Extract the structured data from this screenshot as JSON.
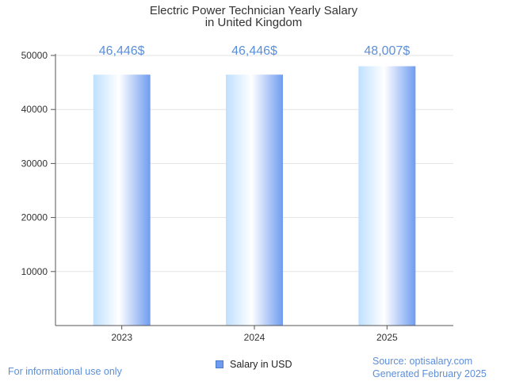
{
  "chart_data": {
    "type": "bar",
    "title": [
      "Electric Power Technician Yearly Salary",
      "in United Kingdom"
    ],
    "categories": [
      "2023",
      "2024",
      "2025"
    ],
    "series": [
      {
        "name": "Salary in USD",
        "values": [
          46446,
          46446,
          48007
        ]
      }
    ],
    "data_labels": [
      "46,446$",
      "46,446$",
      "48,007$"
    ],
    "ylim": [
      0,
      50000
    ],
    "yticks": [
      10000,
      20000,
      30000,
      40000,
      50000
    ],
    "grid": true,
    "legend": "bottom-center"
  },
  "footer": {
    "left": "For informational use only",
    "source": "Source: optisalary.com",
    "generated": "Generated February 2025"
  },
  "colors": {
    "accent": "#5b8fdb",
    "bar_light": "#bfe0ff",
    "bar_mid": "#ffffff",
    "bar_dark": "#6f9cf0",
    "grid": "#e3e3e3",
    "axis": "#555555"
  }
}
